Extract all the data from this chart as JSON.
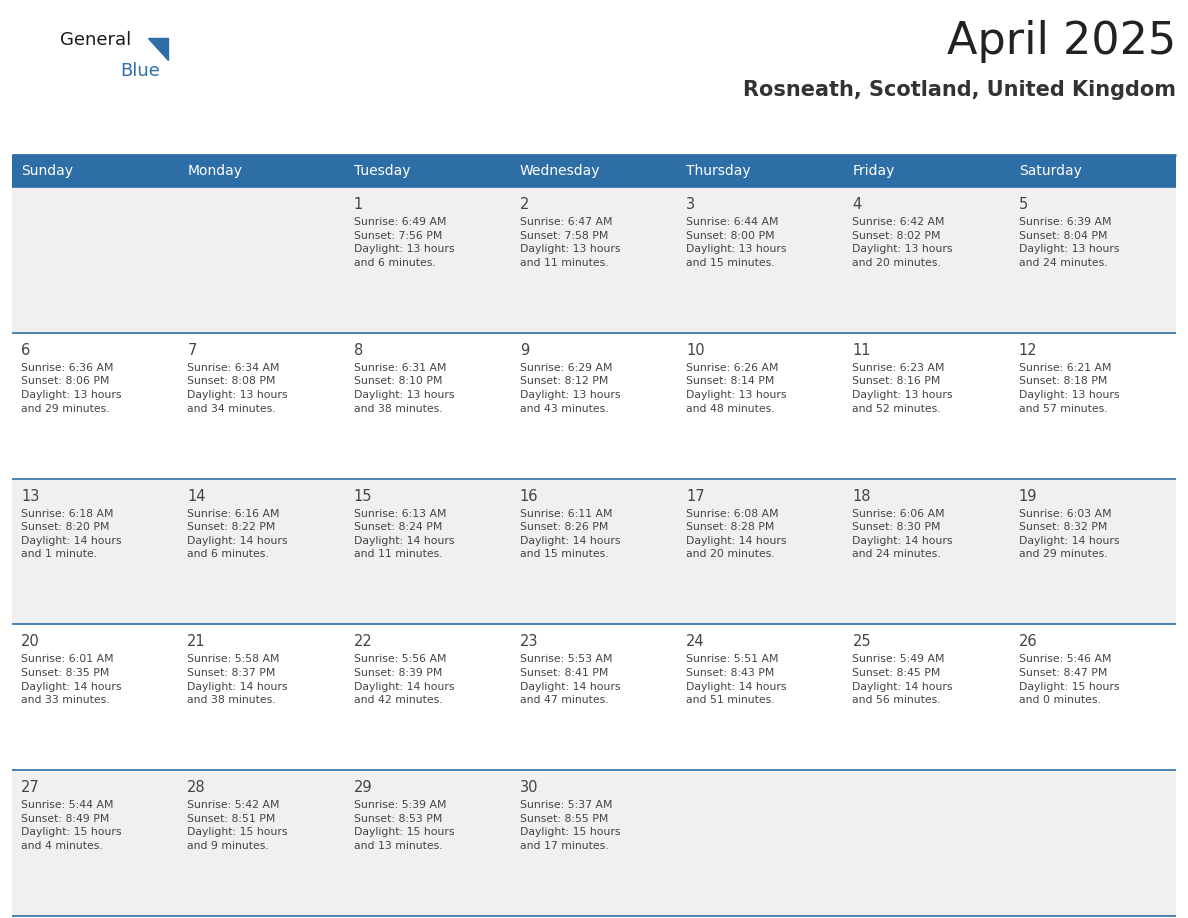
{
  "title": "April 2025",
  "subtitle": "Rosneath, Scotland, United Kingdom",
  "header_bg_color": "#2E6EA6",
  "header_text_color": "#FFFFFF",
  "cell_bg_color_odd": "#F0F0F0",
  "cell_bg_color_even": "#FFFFFF",
  "grid_line_color": "#2E6EA6",
  "day_names": [
    "Sunday",
    "Monday",
    "Tuesday",
    "Wednesday",
    "Thursday",
    "Friday",
    "Saturday"
  ],
  "title_color": "#222222",
  "subtitle_color": "#333333",
  "text_color": "#444444",
  "generalblue_dark_color": "#1a1a1a",
  "generalblue_blue_color": "#2E6EA6",
  "weeks": [
    [
      {
        "day": "",
        "info": ""
      },
      {
        "day": "",
        "info": ""
      },
      {
        "day": "1",
        "info": "Sunrise: 6:49 AM\nSunset: 7:56 PM\nDaylight: 13 hours\nand 6 minutes."
      },
      {
        "day": "2",
        "info": "Sunrise: 6:47 AM\nSunset: 7:58 PM\nDaylight: 13 hours\nand 11 minutes."
      },
      {
        "day": "3",
        "info": "Sunrise: 6:44 AM\nSunset: 8:00 PM\nDaylight: 13 hours\nand 15 minutes."
      },
      {
        "day": "4",
        "info": "Sunrise: 6:42 AM\nSunset: 8:02 PM\nDaylight: 13 hours\nand 20 minutes."
      },
      {
        "day": "5",
        "info": "Sunrise: 6:39 AM\nSunset: 8:04 PM\nDaylight: 13 hours\nand 24 minutes."
      }
    ],
    [
      {
        "day": "6",
        "info": "Sunrise: 6:36 AM\nSunset: 8:06 PM\nDaylight: 13 hours\nand 29 minutes."
      },
      {
        "day": "7",
        "info": "Sunrise: 6:34 AM\nSunset: 8:08 PM\nDaylight: 13 hours\nand 34 minutes."
      },
      {
        "day": "8",
        "info": "Sunrise: 6:31 AM\nSunset: 8:10 PM\nDaylight: 13 hours\nand 38 minutes."
      },
      {
        "day": "9",
        "info": "Sunrise: 6:29 AM\nSunset: 8:12 PM\nDaylight: 13 hours\nand 43 minutes."
      },
      {
        "day": "10",
        "info": "Sunrise: 6:26 AM\nSunset: 8:14 PM\nDaylight: 13 hours\nand 48 minutes."
      },
      {
        "day": "11",
        "info": "Sunrise: 6:23 AM\nSunset: 8:16 PM\nDaylight: 13 hours\nand 52 minutes."
      },
      {
        "day": "12",
        "info": "Sunrise: 6:21 AM\nSunset: 8:18 PM\nDaylight: 13 hours\nand 57 minutes."
      }
    ],
    [
      {
        "day": "13",
        "info": "Sunrise: 6:18 AM\nSunset: 8:20 PM\nDaylight: 14 hours\nand 1 minute."
      },
      {
        "day": "14",
        "info": "Sunrise: 6:16 AM\nSunset: 8:22 PM\nDaylight: 14 hours\nand 6 minutes."
      },
      {
        "day": "15",
        "info": "Sunrise: 6:13 AM\nSunset: 8:24 PM\nDaylight: 14 hours\nand 11 minutes."
      },
      {
        "day": "16",
        "info": "Sunrise: 6:11 AM\nSunset: 8:26 PM\nDaylight: 14 hours\nand 15 minutes."
      },
      {
        "day": "17",
        "info": "Sunrise: 6:08 AM\nSunset: 8:28 PM\nDaylight: 14 hours\nand 20 minutes."
      },
      {
        "day": "18",
        "info": "Sunrise: 6:06 AM\nSunset: 8:30 PM\nDaylight: 14 hours\nand 24 minutes."
      },
      {
        "day": "19",
        "info": "Sunrise: 6:03 AM\nSunset: 8:32 PM\nDaylight: 14 hours\nand 29 minutes."
      }
    ],
    [
      {
        "day": "20",
        "info": "Sunrise: 6:01 AM\nSunset: 8:35 PM\nDaylight: 14 hours\nand 33 minutes."
      },
      {
        "day": "21",
        "info": "Sunrise: 5:58 AM\nSunset: 8:37 PM\nDaylight: 14 hours\nand 38 minutes."
      },
      {
        "day": "22",
        "info": "Sunrise: 5:56 AM\nSunset: 8:39 PM\nDaylight: 14 hours\nand 42 minutes."
      },
      {
        "day": "23",
        "info": "Sunrise: 5:53 AM\nSunset: 8:41 PM\nDaylight: 14 hours\nand 47 minutes."
      },
      {
        "day": "24",
        "info": "Sunrise: 5:51 AM\nSunset: 8:43 PM\nDaylight: 14 hours\nand 51 minutes."
      },
      {
        "day": "25",
        "info": "Sunrise: 5:49 AM\nSunset: 8:45 PM\nDaylight: 14 hours\nand 56 minutes."
      },
      {
        "day": "26",
        "info": "Sunrise: 5:46 AM\nSunset: 8:47 PM\nDaylight: 15 hours\nand 0 minutes."
      }
    ],
    [
      {
        "day": "27",
        "info": "Sunrise: 5:44 AM\nSunset: 8:49 PM\nDaylight: 15 hours\nand 4 minutes."
      },
      {
        "day": "28",
        "info": "Sunrise: 5:42 AM\nSunset: 8:51 PM\nDaylight: 15 hours\nand 9 minutes."
      },
      {
        "day": "29",
        "info": "Sunrise: 5:39 AM\nSunset: 8:53 PM\nDaylight: 15 hours\nand 13 minutes."
      },
      {
        "day": "30",
        "info": "Sunrise: 5:37 AM\nSunset: 8:55 PM\nDaylight: 15 hours\nand 17 minutes."
      },
      {
        "day": "",
        "info": ""
      },
      {
        "day": "",
        "info": ""
      },
      {
        "day": "",
        "info": ""
      }
    ]
  ]
}
